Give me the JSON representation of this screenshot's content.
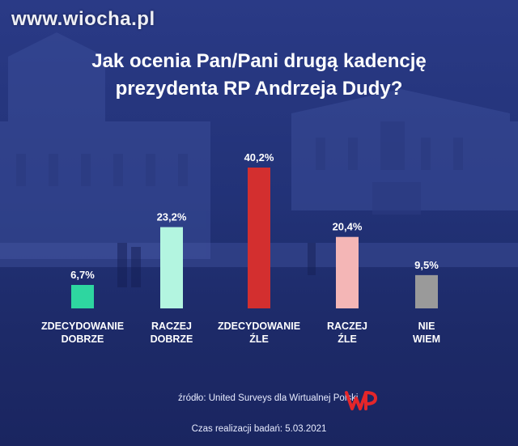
{
  "watermark": "www.wiocha.pl",
  "title_lines": [
    "Jak ocenia Pan/Pani drugą kadencję",
    "prezydenta RP Andrzeja Dudy?"
  ],
  "chart_data": {
    "type": "bar",
    "title": "Jak ocenia Pan/Pani drugą kadencję prezydenta RP Andrzeja Dudy?",
    "categories": [
      [
        "ZDECYDOWANIE",
        "DOBRZE"
      ],
      [
        "RACZEJ",
        "DOBRZE"
      ],
      [
        "ZDECYDOWANIE",
        "ŹLE"
      ],
      [
        "RACZEJ",
        "ŹLE"
      ],
      [
        "NIE",
        "WIEM"
      ]
    ],
    "values": [
      6.7,
      23.2,
      40.2,
      20.4,
      9.5
    ],
    "value_labels": [
      "6,7%",
      "23,2%",
      "40,2%",
      "20,4%",
      "9,5%"
    ],
    "colors": [
      "#2ed6a0",
      "#b3f5e0",
      "#d32f2f",
      "#f4b6b6",
      "#9a9a9a"
    ],
    "ylim": [
      0,
      40.2
    ],
    "grid": false,
    "legend": "none"
  },
  "source": "źródło:  United Surveys dla Wirtualnej Polski",
  "footer": "Czas realizacji badań: 5.03.2021",
  "logo_icon": "wp-logo-icon",
  "logo_color": "#e4262a"
}
